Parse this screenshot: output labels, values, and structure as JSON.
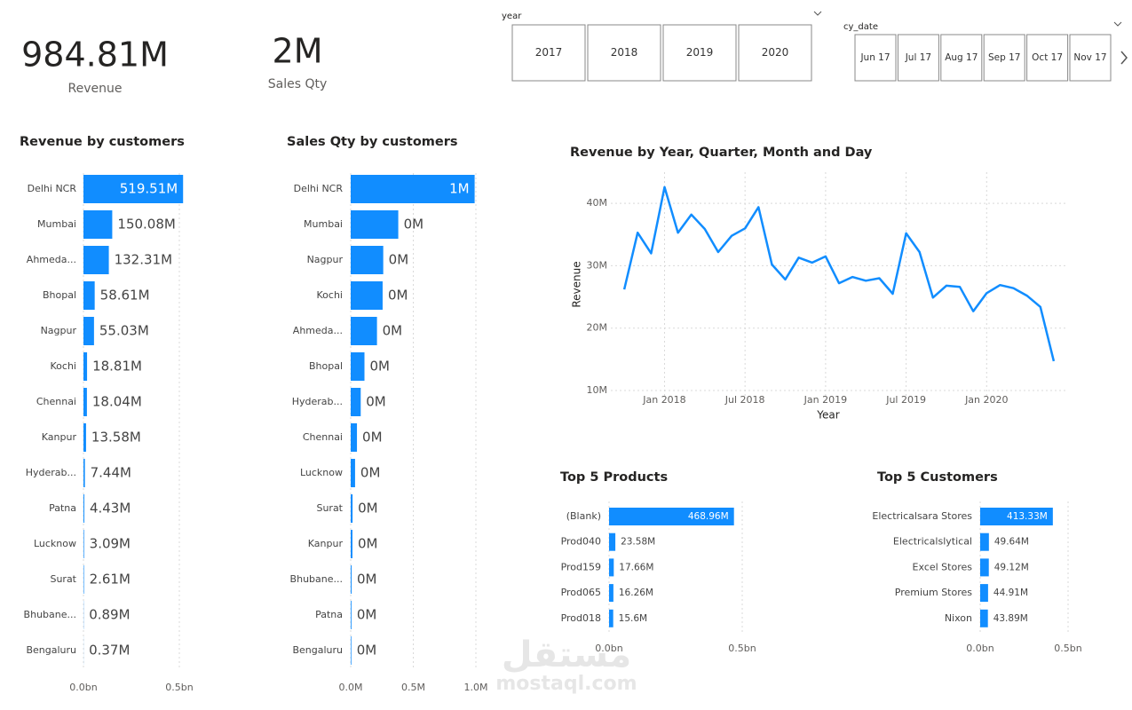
{
  "cards": [
    {
      "value": "984.81M",
      "label": "Revenue"
    },
    {
      "value": "2M",
      "label": "Sales Qty"
    }
  ],
  "slicers": [
    {
      "title": "year",
      "items": [
        "2017",
        "2018",
        "2019",
        "2020"
      ]
    },
    {
      "title": "cy_date",
      "items": [
        "Jun 17",
        "Jul 17",
        "Aug 17",
        "Sep 17",
        "Oct 17",
        "Nov 17"
      ]
    }
  ],
  "watermark": {
    "arabic": "مستقل",
    "latin": "mostaql.com"
  },
  "chart_data": [
    {
      "type": "hbar",
      "title": "Revenue by customers",
      "color": "#118dff",
      "grid": true,
      "categories": [
        "Delhi NCR",
        "Mumbai",
        "Ahmeda...",
        "Bhopal",
        "Nagpur",
        "Kochi",
        "Chennai",
        "Kanpur",
        "Hyderab...",
        "Patna",
        "Lucknow",
        "Surat",
        "Bhubane...",
        "Bengaluru"
      ],
      "values": [
        0.51951,
        0.15008,
        0.13231,
        0.05861,
        0.05503,
        0.01881,
        0.01804,
        0.01358,
        0.00744,
        0.00443,
        0.00309,
        0.00261,
        0.00089,
        0.00037
      ],
      "value_labels": [
        "519.51M",
        "150.08M",
        "132.31M",
        "58.61M",
        "55.03M",
        "18.81M",
        "18.04M",
        "13.58M",
        "7.44M",
        "4.43M",
        "3.09M",
        "2.61M",
        "0.89M",
        "0.37M"
      ],
      "xlim": [
        0,
        0.55
      ],
      "xticks": [
        {
          "value": 0,
          "label": "0.0bn"
        },
        {
          "value": 0.5,
          "label": "0.5bn"
        }
      ]
    },
    {
      "type": "hbar",
      "title": "Sales Qty by customers",
      "color": "#118dff",
      "grid": true,
      "categories": [
        "Delhi NCR",
        "Mumbai",
        "Nagpur",
        "Kochi",
        "Ahmeda...",
        "Bhopal",
        "Hyderab...",
        "Chennai",
        "Lucknow",
        "Surat",
        "Kanpur",
        "Bhubane...",
        "Patna",
        "Bengaluru"
      ],
      "values": [
        0.99,
        0.38,
        0.26,
        0.255,
        0.21,
        0.11,
        0.08,
        0.05,
        0.035,
        0.015,
        0.014,
        0.007,
        0.006,
        0.005
      ],
      "value_labels": [
        "1M",
        "0M",
        "0M",
        "0M",
        "0M",
        "0M",
        "0M",
        "0M",
        "0M",
        "0M",
        "0M",
        "0M",
        "0M",
        "0M"
      ],
      "xlim": [
        0,
        1
      ],
      "xticks": [
        {
          "value": 0,
          "label": "0.0M"
        },
        {
          "value": 0.5,
          "label": "0.5M"
        },
        {
          "value": 1,
          "label": "1.0M"
        }
      ]
    },
    {
      "type": "line",
      "title": "Revenue by Year, Quarter, Month and Day",
      "color": "#118dff",
      "grid": true,
      "x_label": "Year",
      "y_label": "Revenue",
      "x": [
        "2017-10",
        "2017-11",
        "2017-12",
        "2018-01",
        "2018-02",
        "2018-03",
        "2018-04",
        "2018-05",
        "2018-06",
        "2018-07",
        "2018-08",
        "2018-09",
        "2018-10",
        "2018-11",
        "2018-12",
        "2019-01",
        "2019-02",
        "2019-03",
        "2019-04",
        "2019-05",
        "2019-06",
        "2019-07",
        "2019-08",
        "2019-09",
        "2019-10",
        "2019-11",
        "2019-12",
        "2020-01",
        "2020-02",
        "2020-03",
        "2020-04",
        "2020-05",
        "2020-06"
      ],
      "values": [
        26.2,
        35.3,
        32,
        42.6,
        35.3,
        38.2,
        35.9,
        32.2,
        34.8,
        36,
        39.4,
        30.2,
        27.8,
        31.3,
        30.5,
        31.5,
        27.2,
        28.2,
        27.6,
        28,
        25.5,
        35.2,
        32.2,
        24.9,
        26.8,
        26.6,
        22.7,
        25.6,
        26.9,
        26.4,
        25.2,
        23.4,
        14.7
      ],
      "xlim": [
        "2017-09",
        "2020-07"
      ],
      "xticks": [
        {
          "value": "2018-01",
          "label": "Jan 2018"
        },
        {
          "value": "2018-07",
          "label": "Jul 2018"
        },
        {
          "value": "2019-01",
          "label": "Jan 2019"
        },
        {
          "value": "2019-07",
          "label": "Jul 2019"
        },
        {
          "value": "2020-01",
          "label": "Jan 2020"
        }
      ],
      "ylim": [
        9,
        45
      ],
      "yticks": [
        {
          "value": 10,
          "label": "10M"
        },
        {
          "value": 20,
          "label": "20M"
        },
        {
          "value": 30,
          "label": "30M"
        },
        {
          "value": 40,
          "label": "40M"
        }
      ]
    },
    {
      "type": "hbar",
      "title": "Top 5 Products",
      "color": "#118dff",
      "grid": true,
      "categories": [
        "(Blank)",
        "Prod040",
        "Prod159",
        "Prod065",
        "Prod018"
      ],
      "values": [
        0.46896,
        0.02358,
        0.01766,
        0.01626,
        0.0156
      ],
      "value_labels": [
        "468.96M",
        "23.58M",
        "17.66M",
        "16.26M",
        "15.6M"
      ],
      "xlim": [
        0,
        0.55
      ],
      "xticks": [
        {
          "value": 0,
          "label": "0.0bn"
        },
        {
          "value": 0.5,
          "label": "0.5bn"
        }
      ]
    },
    {
      "type": "hbar",
      "title": "Top 5 Customers",
      "color": "#118dff",
      "grid": true,
      "categories": [
        "Electricalsara Stores",
        "Electricalslytical",
        "Excel Stores",
        "Premium Stores",
        "Nixon"
      ],
      "values": [
        0.41333,
        0.04964,
        0.04912,
        0.04491,
        0.04389
      ],
      "value_labels": [
        "413.33M",
        "49.64M",
        "49.12M",
        "44.91M",
        "43.89M"
      ],
      "xlim": [
        0,
        0.55
      ],
      "xticks": [
        {
          "value": 0,
          "label": "0.0bn"
        },
        {
          "value": 0.5,
          "label": "0.5bn"
        }
      ]
    }
  ]
}
